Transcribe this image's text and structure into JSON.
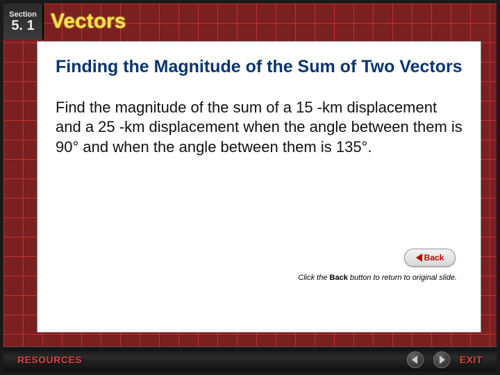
{
  "header": {
    "section_label": "Section",
    "section_number": "5. 1",
    "chapter_title": "Vectors"
  },
  "content": {
    "subtitle": "Finding the Magnitude of the Sum of Two Vectors",
    "body": "Find the magnitude of the sum of a 15 -km displacement and a 25 -km displacement when the angle between them is 90° and when the angle between them is 135°."
  },
  "back": {
    "label": "Back",
    "hint_prefix": "Click the ",
    "hint_bold": "Back",
    "hint_suffix": " button to return to original slide."
  },
  "footer": {
    "resources": "RESOURCES",
    "exit": "EXIT"
  },
  "colors": {
    "grid_line": "#c53030",
    "grid_bg": "#7a2020",
    "title_yellow": "#ffe14d",
    "subtitle_blue": "#0a3570",
    "back_red": "#b00",
    "footer_red": "#d44"
  }
}
